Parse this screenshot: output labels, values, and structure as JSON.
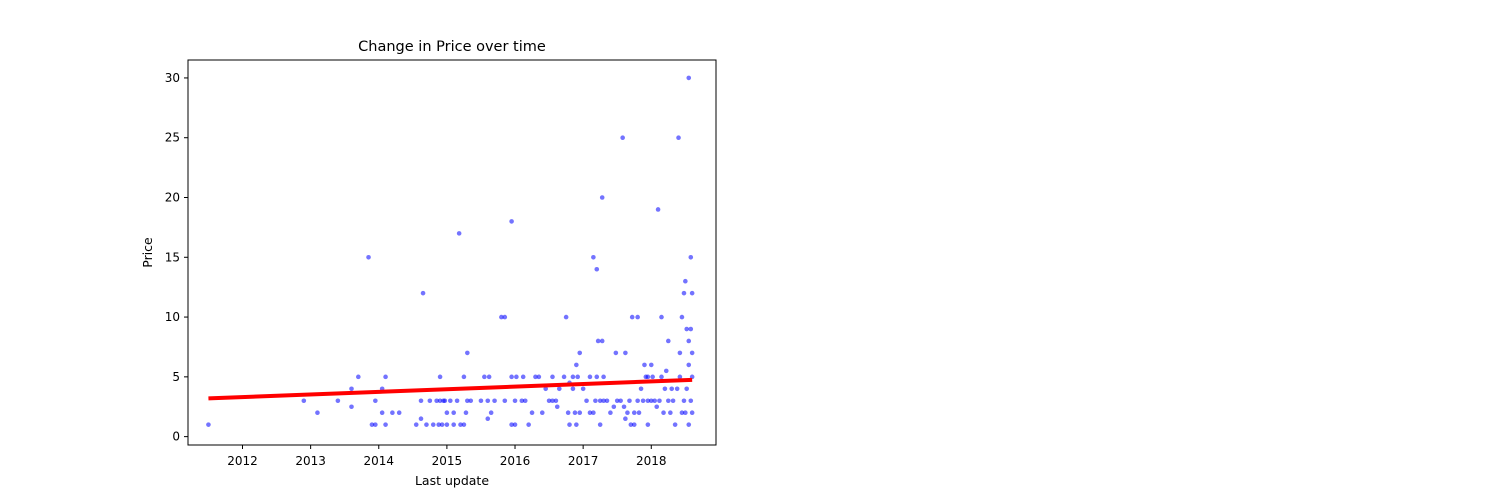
{
  "chart_data": {
    "type": "scatter",
    "title": "Change in Price over time",
    "xlabel": "Last update",
    "ylabel": "Price",
    "xlim": [
      2011.2,
      2018.95
    ],
    "ylim": [
      -0.7,
      31.5
    ],
    "xticks": [
      2012,
      2013,
      2014,
      2015,
      2016,
      2017,
      2018
    ],
    "yticks": [
      0,
      5,
      10,
      15,
      20,
      25,
      30
    ],
    "grid": false,
    "legend": "none",
    "colors": {
      "points": "#0000ff",
      "trend": "#ff0000"
    },
    "series": [
      {
        "kind": "points",
        "points": [
          [
            2011.5,
            1
          ],
          [
            2012.9,
            3
          ],
          [
            2013.1,
            2
          ],
          [
            2013.4,
            3
          ],
          [
            2013.6,
            4
          ],
          [
            2013.6,
            2.5
          ],
          [
            2013.7,
            5
          ],
          [
            2013.85,
            15
          ],
          [
            2013.9,
            1
          ],
          [
            2013.95,
            1
          ],
          [
            2013.95,
            3
          ],
          [
            2014.05,
            2
          ],
          [
            2014.05,
            4
          ],
          [
            2014.1,
            5
          ],
          [
            2014.1,
            1
          ],
          [
            2014.2,
            2
          ],
          [
            2014.3,
            2
          ],
          [
            2014.55,
            1
          ],
          [
            2014.62,
            1.5
          ],
          [
            2014.62,
            3
          ],
          [
            2014.65,
            12
          ],
          [
            2014.7,
            1
          ],
          [
            2014.75,
            3
          ],
          [
            2014.8,
            1
          ],
          [
            2014.85,
            3
          ],
          [
            2014.88,
            1
          ],
          [
            2014.9,
            5
          ],
          [
            2014.9,
            3
          ],
          [
            2014.93,
            1
          ],
          [
            2014.95,
            3
          ],
          [
            2014.97,
            3
          ],
          [
            2015,
            1
          ],
          [
            2015,
            2
          ],
          [
            2015.05,
            3
          ],
          [
            2015.1,
            1
          ],
          [
            2015.1,
            2
          ],
          [
            2015.15,
            3
          ],
          [
            2015.2,
            1
          ],
          [
            2015.25,
            1
          ],
          [
            2015.25,
            5
          ],
          [
            2015.28,
            2
          ],
          [
            2015.3,
            7
          ],
          [
            2015.3,
            3
          ],
          [
            2015.35,
            3
          ],
          [
            2015.18,
            17
          ],
          [
            2015.5,
            3
          ],
          [
            2015.55,
            5
          ],
          [
            2015.6,
            1.5
          ],
          [
            2015.6,
            3
          ],
          [
            2015.62,
            5
          ],
          [
            2015.65,
            2
          ],
          [
            2015.7,
            3
          ],
          [
            2015.8,
            10
          ],
          [
            2015.85,
            10
          ],
          [
            2015.85,
            3
          ],
          [
            2015.95,
            1
          ],
          [
            2015.95,
            5
          ],
          [
            2015.95,
            18
          ],
          [
            2016,
            3
          ],
          [
            2016,
            1
          ],
          [
            2016.02,
            5
          ],
          [
            2016.1,
            3
          ],
          [
            2016.12,
            5
          ],
          [
            2016.15,
            3
          ],
          [
            2016.2,
            1
          ],
          [
            2016.25,
            2
          ],
          [
            2016.3,
            5
          ],
          [
            2016.35,
            5
          ],
          [
            2016.4,
            2
          ],
          [
            2016.45,
            4
          ],
          [
            2016.5,
            3
          ],
          [
            2016.55,
            3
          ],
          [
            2016.55,
            5
          ],
          [
            2016.6,
            3
          ],
          [
            2016.62,
            2.5
          ],
          [
            2016.65,
            4
          ],
          [
            2016.72,
            5
          ],
          [
            2016.75,
            10
          ],
          [
            2016.78,
            2
          ],
          [
            2016.8,
            1
          ],
          [
            2016.8,
            4.5
          ],
          [
            2016.85,
            4
          ],
          [
            2016.85,
            5
          ],
          [
            2016.88,
            2
          ],
          [
            2016.9,
            1
          ],
          [
            2016.9,
            6
          ],
          [
            2016.92,
            5
          ],
          [
            2016.95,
            7
          ],
          [
            2016.95,
            2
          ],
          [
            2017,
            4
          ],
          [
            2017.05,
            3
          ],
          [
            2017.1,
            5
          ],
          [
            2017.1,
            2
          ],
          [
            2017.15,
            15
          ],
          [
            2017.15,
            2
          ],
          [
            2017.18,
            3
          ],
          [
            2017.2,
            14
          ],
          [
            2017.2,
            5
          ],
          [
            2017.22,
            8
          ],
          [
            2017.25,
            1
          ],
          [
            2017.25,
            3
          ],
          [
            2017.28,
            8
          ],
          [
            2017.28,
            20
          ],
          [
            2017.3,
            3
          ],
          [
            2017.3,
            5
          ],
          [
            2017.35,
            3
          ],
          [
            2017.4,
            2
          ],
          [
            2017.45,
            2.5
          ],
          [
            2017.48,
            7
          ],
          [
            2017.5,
            3
          ],
          [
            2017.55,
            3
          ],
          [
            2017.58,
            25
          ],
          [
            2017.6,
            2.5
          ],
          [
            2017.62,
            7
          ],
          [
            2017.62,
            1.5
          ],
          [
            2017.65,
            2
          ],
          [
            2017.68,
            3
          ],
          [
            2017.7,
            1
          ],
          [
            2017.72,
            10
          ],
          [
            2017.75,
            2
          ],
          [
            2017.75,
            1
          ],
          [
            2017.8,
            10
          ],
          [
            2017.8,
            3
          ],
          [
            2017.82,
            2
          ],
          [
            2017.85,
            4
          ],
          [
            2017.88,
            3
          ],
          [
            2017.9,
            6
          ],
          [
            2017.92,
            5
          ],
          [
            2017.95,
            1
          ],
          [
            2017.95,
            3
          ],
          [
            2017.95,
            5
          ],
          [
            2018,
            6
          ],
          [
            2018,
            3
          ],
          [
            2018.02,
            5
          ],
          [
            2018.05,
            3
          ],
          [
            2018.08,
            2.5
          ],
          [
            2018.1,
            19
          ],
          [
            2018.12,
            3
          ],
          [
            2018.15,
            10
          ],
          [
            2018.15,
            5
          ],
          [
            2018.18,
            2
          ],
          [
            2018.2,
            4
          ],
          [
            2018.22,
            5.5
          ],
          [
            2018.25,
            8
          ],
          [
            2018.25,
            3
          ],
          [
            2018.28,
            2
          ],
          [
            2018.3,
            4
          ],
          [
            2018.32,
            3
          ],
          [
            2018.35,
            1
          ],
          [
            2018.38,
            4
          ],
          [
            2018.4,
            25
          ],
          [
            2018.42,
            7
          ],
          [
            2018.42,
            5
          ],
          [
            2018.45,
            2
          ],
          [
            2018.45,
            10
          ],
          [
            2018.48,
            12
          ],
          [
            2018.48,
            3
          ],
          [
            2018.5,
            13
          ],
          [
            2018.5,
            2
          ],
          [
            2018.52,
            9
          ],
          [
            2018.52,
            4
          ],
          [
            2018.55,
            30
          ],
          [
            2018.55,
            8
          ],
          [
            2018.55,
            6
          ],
          [
            2018.55,
            1
          ],
          [
            2018.58,
            15
          ],
          [
            2018.58,
            9
          ],
          [
            2018.58,
            3
          ],
          [
            2018.6,
            12
          ],
          [
            2018.6,
            7
          ],
          [
            2018.6,
            5
          ],
          [
            2018.6,
            2
          ]
        ]
      },
      {
        "kind": "trend-line",
        "points": [
          [
            2011.5,
            3.2
          ],
          [
            2018.6,
            4.75
          ]
        ]
      }
    ]
  }
}
